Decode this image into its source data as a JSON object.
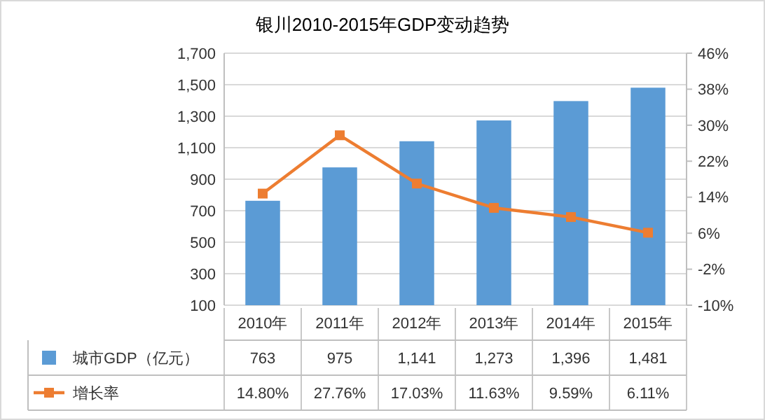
{
  "chart_data": {
    "type": "bar",
    "title": "银川2010-2015年GDP变动趋势",
    "categories": [
      "2010年",
      "2011年",
      "2012年",
      "2013年",
      "2014年",
      "2015年"
    ],
    "series": [
      {
        "name": "城市GDP（亿元）",
        "color": "#5b9bd5",
        "values": [
          763,
          975,
          1141,
          1273,
          1396,
          1481
        ],
        "value_labels": [
          "763",
          "975",
          "1,141",
          "1,273",
          "1,396",
          "1,481"
        ]
      },
      {
        "name": "增长率",
        "type": "line",
        "axis": "y2",
        "color": "#ed7d31",
        "marker": "square",
        "values": [
          14.8,
          27.76,
          17.03,
          11.63,
          9.59,
          6.11
        ],
        "value_labels": [
          "14.80%",
          "27.76%",
          "17.03%",
          "11.63%",
          "9.59%",
          "6.11%"
        ]
      }
    ],
    "ylim": [
      100,
      1700
    ],
    "yticks": [
      {
        "value": 100,
        "label": "100"
      },
      {
        "value": 300,
        "label": "300"
      },
      {
        "value": 500,
        "label": "500"
      },
      {
        "value": 700,
        "label": "700"
      },
      {
        "value": 900,
        "label": "900"
      },
      {
        "value": 1100,
        "label": "1,100"
      },
      {
        "value": 1300,
        "label": "1,300"
      },
      {
        "value": 1500,
        "label": "1,500"
      },
      {
        "value": 1700,
        "label": "1,700"
      }
    ],
    "y2lim": [
      -10,
      46
    ],
    "y2ticks": [
      {
        "value": -10,
        "label": "-10%"
      },
      {
        "value": -2,
        "label": "-2%"
      },
      {
        "value": 6,
        "label": "6%"
      },
      {
        "value": 14,
        "label": "14%"
      },
      {
        "value": 22,
        "label": "22%"
      },
      {
        "value": 30,
        "label": "30%"
      },
      {
        "value": 38,
        "label": "38%"
      },
      {
        "value": 46,
        "label": "46%"
      }
    ],
    "grid": "y",
    "legend": "bottom"
  }
}
